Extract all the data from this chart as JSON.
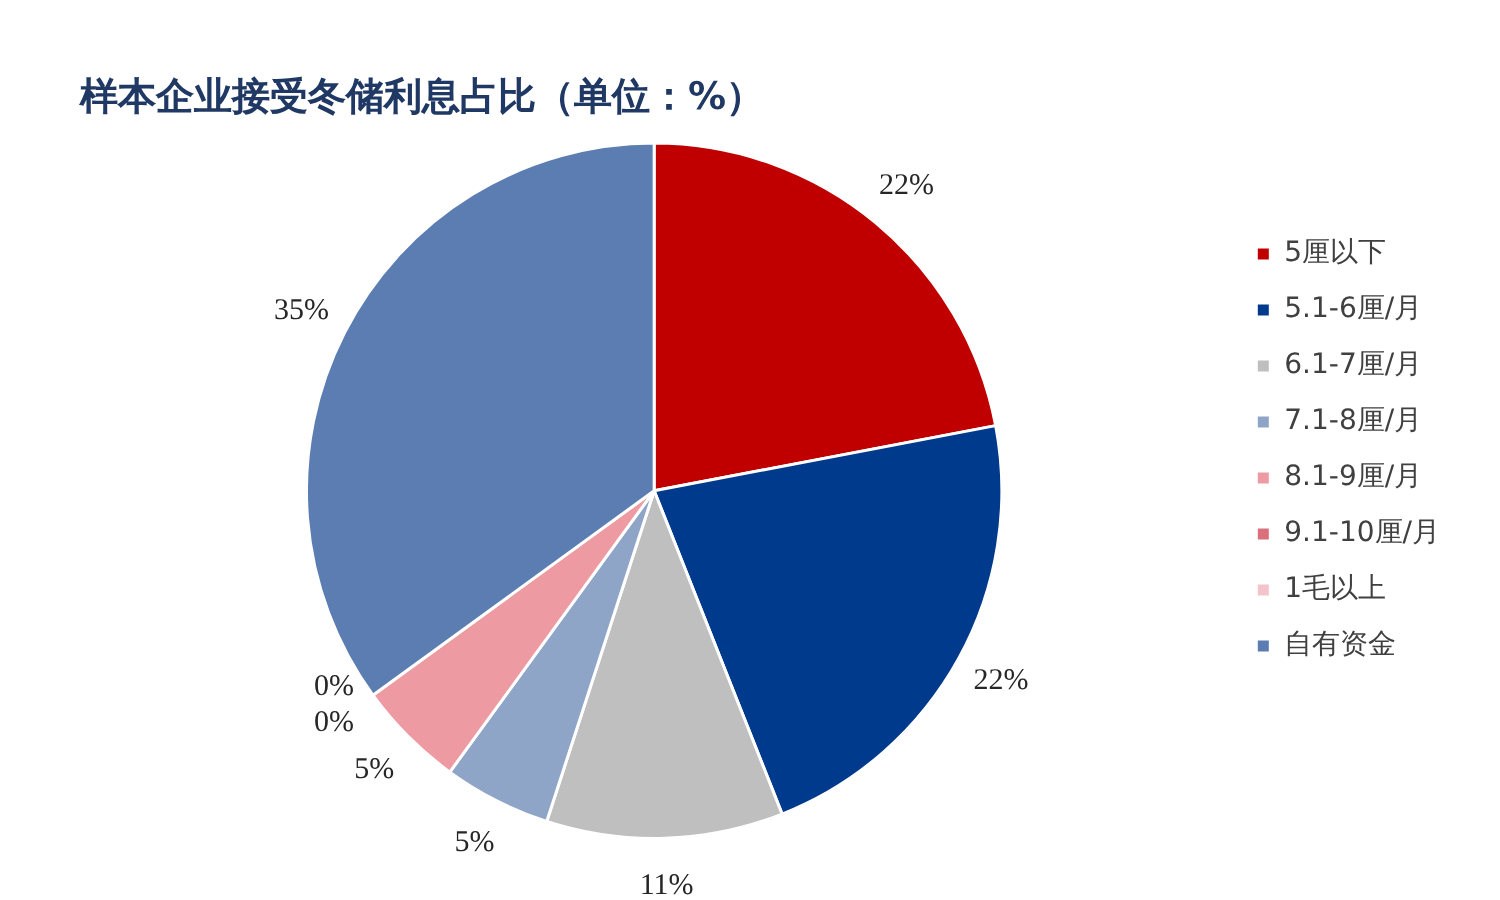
{
  "chart_data": {
    "type": "pie",
    "title": "样本企业接受冬储利息占比（单位：%）",
    "categories": [
      "5厘以下",
      "5.1-6厘/月",
      "6.1-7厘/月",
      "7.1-8厘/月",
      "8.1-9厘/月",
      "9.1-10厘/月",
      "1毛以上",
      "自有资金"
    ],
    "values": [
      22,
      22,
      11,
      5,
      5,
      0,
      0,
      35
    ],
    "colors": [
      "#c00000",
      "#003a8c",
      "#bfbfbf",
      "#8ea5c8",
      "#ee9aa2",
      "#d9707c",
      "#f2c4cc",
      "#5b7db1"
    ],
    "value_labels": [
      "22%",
      "22%",
      "11%",
      "5%",
      "5%",
      "0%",
      "0%",
      "35%"
    ],
    "legend": "right"
  }
}
